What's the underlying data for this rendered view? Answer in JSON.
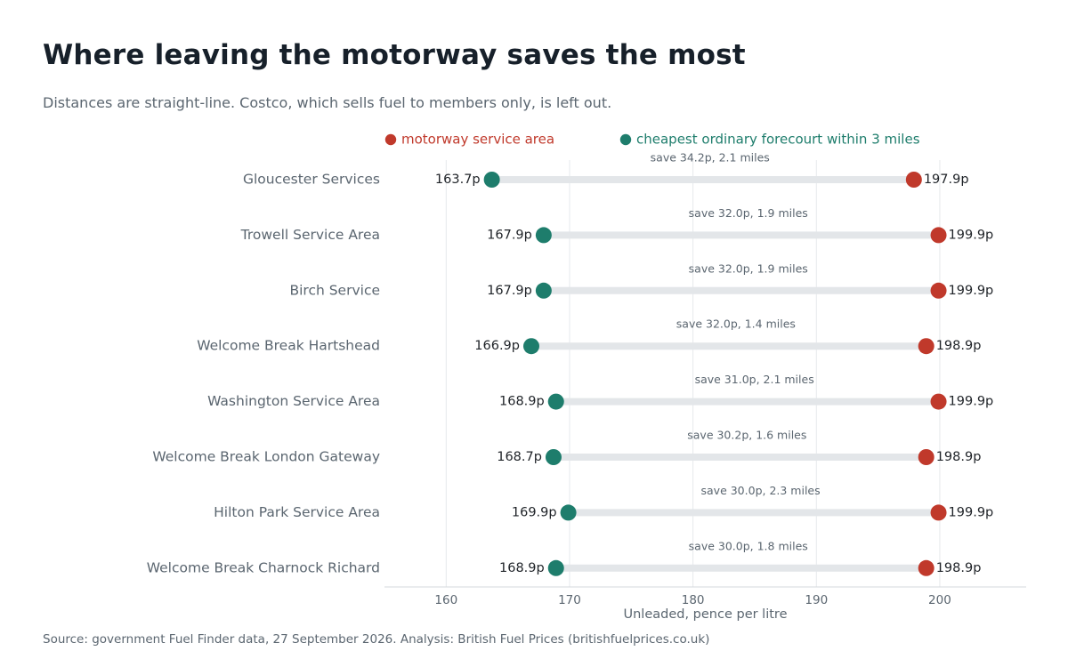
{
  "title": "Where leaving the motorway saves the most",
  "subtitle": "Distances are straight-line. Costco, which sells fuel to members only, is left out.",
  "source": "Source: government Fuel Finder data, 27 September 2026. Analysis: British Fuel Prices (britishfuelprices.co.uk)",
  "colors": {
    "motorway": "#c0392b",
    "forecourt": "#1e7d6c",
    "connector": "#e3e6e9",
    "grid": "#e6e9ec",
    "text": "#1f2328",
    "muted": "#5b6670"
  },
  "chart_data": {
    "type": "dumbbell",
    "xlabel": "Unleaded, pence per litre",
    "xlim": [
      155,
      207
    ],
    "xticks": [
      160,
      170,
      180,
      190,
      200
    ],
    "grid": "vertical",
    "legend_placement": "top-center",
    "series": [
      {
        "key": "motorway",
        "name": "motorway service area"
      },
      {
        "key": "forecourt",
        "name": "cheapest ordinary forecourt within 3 miles"
      }
    ],
    "rows": [
      {
        "name": "Gloucester Services",
        "forecourt": 163.7,
        "motorway": 197.9,
        "forecourt_label": "163.7p",
        "motorway_label": "197.9p",
        "annotation": "save 34.2p, 2.1 miles"
      },
      {
        "name": "Trowell Service Area",
        "forecourt": 167.9,
        "motorway": 199.9,
        "forecourt_label": "167.9p",
        "motorway_label": "199.9p",
        "annotation": "save 32.0p, 1.9 miles"
      },
      {
        "name": "Birch Service",
        "forecourt": 167.9,
        "motorway": 199.9,
        "forecourt_label": "167.9p",
        "motorway_label": "199.9p",
        "annotation": "save 32.0p, 1.9 miles"
      },
      {
        "name": "Welcome Break Hartshead",
        "forecourt": 166.9,
        "motorway": 198.9,
        "forecourt_label": "166.9p",
        "motorway_label": "198.9p",
        "annotation": "save 32.0p, 1.4 miles"
      },
      {
        "name": "Washington Service Area",
        "forecourt": 168.9,
        "motorway": 199.9,
        "forecourt_label": "168.9p",
        "motorway_label": "199.9p",
        "annotation": "save 31.0p, 2.1 miles"
      },
      {
        "name": "Welcome Break London Gateway",
        "forecourt": 168.7,
        "motorway": 198.9,
        "forecourt_label": "168.7p",
        "motorway_label": "198.9p",
        "annotation": "save 30.2p, 1.6 miles"
      },
      {
        "name": "Hilton Park Service Area",
        "forecourt": 169.9,
        "motorway": 199.9,
        "forecourt_label": "169.9p",
        "motorway_label": "199.9p",
        "annotation": "save 30.0p, 2.3 miles"
      },
      {
        "name": "Welcome Break Charnock Richard",
        "forecourt": 168.9,
        "motorway": 198.9,
        "forecourt_label": "168.9p",
        "motorway_label": "198.9p",
        "annotation": "save 30.0p, 1.8 miles"
      }
    ]
  }
}
